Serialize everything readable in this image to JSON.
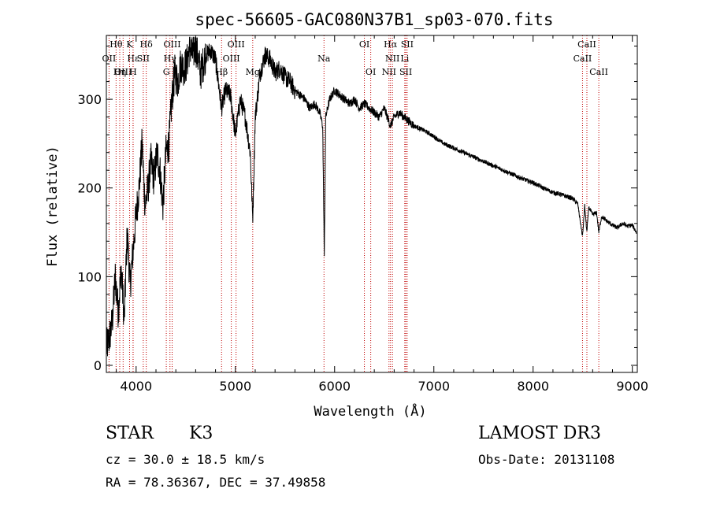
{
  "chart_data": {
    "type": "line",
    "title": "spec-56605-GAC080N37B1_sp03-070.fits",
    "xlabel": "Wavelength (Å)",
    "ylabel": "Flux (relative)",
    "xlim": [
      3700,
      9050
    ],
    "ylim": [
      -8,
      372
    ],
    "x_ticks": [
      4000,
      5000,
      6000,
      7000,
      8000,
      9000
    ],
    "y_ticks": [
      0,
      100,
      200,
      300
    ],
    "grid": false,
    "series": [
      {
        "name": "flux",
        "x": [
          3700,
          3730,
          3760,
          3790,
          3820,
          3850,
          3880,
          3910,
          3940,
          3970,
          4000,
          4030,
          4060,
          4090,
          4120,
          4150,
          4180,
          4210,
          4240,
          4270,
          4300,
          4330,
          4360,
          4390,
          4420,
          4450,
          4480,
          4510,
          4540,
          4570,
          4600,
          4650,
          4700,
          4750,
          4800,
          4850,
          4861,
          4900,
          4950,
          5000,
          5050,
          5100,
          5150,
          5175,
          5200,
          5250,
          5300,
          5350,
          5400,
          5450,
          5500,
          5550,
          5600,
          5650,
          5700,
          5750,
          5800,
          5850,
          5880,
          5890,
          5896,
          5910,
          5950,
          6000,
          6050,
          6100,
          6150,
          6200,
          6250,
          6300,
          6350,
          6400,
          6450,
          6500,
          6563,
          6600,
          6650,
          6700,
          6750,
          6800,
          6900,
          7000,
          7100,
          7200,
          7300,
          7400,
          7500,
          7600,
          7700,
          7800,
          7900,
          8000,
          8100,
          8200,
          8300,
          8400,
          8450,
          8498,
          8520,
          8542,
          8560,
          8600,
          8640,
          8662,
          8690,
          8750,
          8800,
          8850,
          8900,
          8950,
          9000,
          9040
        ],
        "y": [
          20,
          30,
          50,
          100,
          60,
          110,
          50,
          150,
          90,
          130,
          170,
          200,
          250,
          180,
          200,
          230,
          210,
          240,
          220,
          180,
          240,
          250,
          300,
          330,
          320,
          340,
          335,
          340,
          360,
          350,
          360,
          330,
          350,
          355,
          345,
          300,
          290,
          310,
          305,
          260,
          300,
          280,
          240,
          165,
          280,
          330,
          350,
          345,
          330,
          335,
          325,
          320,
          310,
          305,
          300,
          290,
          295,
          285,
          270,
          180,
          120,
          280,
          300,
          310,
          305,
          300,
          295,
          300,
          290,
          295,
          290,
          285,
          280,
          290,
          270,
          280,
          285,
          280,
          275,
          270,
          265,
          258,
          250,
          245,
          240,
          235,
          230,
          225,
          220,
          215,
          210,
          206,
          200,
          195,
          192,
          188,
          182,
          145,
          180,
          150,
          178,
          170,
          172,
          150,
          168,
          162,
          158,
          155,
          160,
          157,
          158,
          150
        ]
      }
    ],
    "line_markers": [
      {
        "label": "Hθ",
        "wavelength": 3798,
        "row": 0
      },
      {
        "label": "OII",
        "wavelength": 3727,
        "row": 1
      },
      {
        "label": "OIII",
        "wavelength": 3869,
        "row": 2
      },
      {
        "label": "K",
        "wavelength": 3934,
        "row": 0
      },
      {
        "label": "Hε",
        "wavelength": 3970,
        "row": 1
      },
      {
        "label": "Hη",
        "wavelength": 3835,
        "row": 2
      },
      {
        "label": "Hδ",
        "wavelength": 4102,
        "row": 0
      },
      {
        "label": "SII",
        "wavelength": 4072,
        "row": 1
      },
      {
        "label": "H",
        "wavelength": 3969,
        "row": 2
      },
      {
        "label": "OIII",
        "wavelength": 4363,
        "row": 0
      },
      {
        "label": "Hγ",
        "wavelength": 4341,
        "row": 1
      },
      {
        "label": "G",
        "wavelength": 4304,
        "row": 2
      },
      {
        "label": "OIII",
        "wavelength": 5007,
        "row": 0
      },
      {
        "label": "OIII",
        "wavelength": 4959,
        "row": 1
      },
      {
        "label": "Hβ",
        "wavelength": 4861,
        "row": 2
      },
      {
        "label": "Mg",
        "wavelength": 5175,
        "row": 2
      },
      {
        "label": "Na",
        "wavelength": 5893,
        "row": 1
      },
      {
        "label": "OI",
        "wavelength": 6300,
        "row": 0
      },
      {
        "label": "OI",
        "wavelength": 6364,
        "row": 2
      },
      {
        "label": "Hα",
        "wavelength": 6563,
        "row": 0
      },
      {
        "label": "NII",
        "wavelength": 6583,
        "row": 1
      },
      {
        "label": "NII",
        "wavelength": 6548,
        "row": 2
      },
      {
        "label": "SII",
        "wavelength": 6731,
        "row": 0
      },
      {
        "label": "Li",
        "wavelength": 6707,
        "row": 1
      },
      {
        "label": "SII",
        "wavelength": 6717,
        "row": 2
      },
      {
        "label": "CaII",
        "wavelength": 8542,
        "row": 0
      },
      {
        "label": "CaII",
        "wavelength": 8498,
        "row": 1
      },
      {
        "label": "CaII",
        "wavelength": 8662,
        "row": 2
      }
    ]
  },
  "info": {
    "object_class": "STAR",
    "subclass": "K3",
    "survey": "LAMOST DR3",
    "cz": "cz = 30.0 ± 18.5 km/s",
    "obs_date": "Obs-Date: 20131108",
    "radec": "RA =  78.36367, DEC =  37.49858"
  },
  "colors": {
    "line_marker": "#c00000",
    "spectrum": "#000000",
    "axis": "#000000"
  }
}
